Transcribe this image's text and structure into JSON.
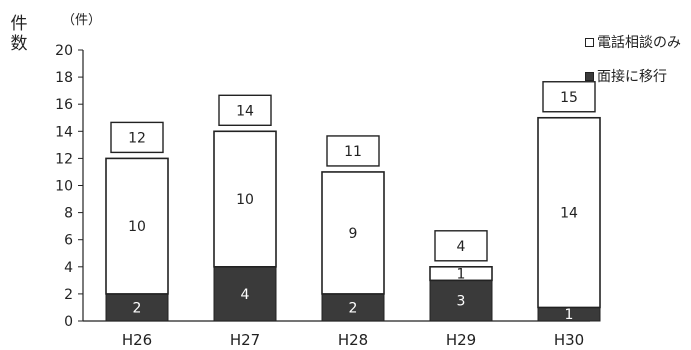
{
  "chart_data": {
    "type": "bar",
    "stacked": true,
    "categories": [
      "H26",
      "H27",
      "H28",
      "H29",
      "H30"
    ],
    "series": [
      {
        "name": "面接に移行",
        "values": [
          2,
          4,
          2,
          3,
          1
        ],
        "color": "#3a3a3a"
      },
      {
        "name": "電話相談のみ",
        "values": [
          10,
          10,
          9,
          1,
          14
        ],
        "color": "#ffffff"
      }
    ],
    "totals": [
      12,
      14,
      11,
      4,
      15
    ],
    "ylabel": "件数",
    "unit_label": "（件）",
    "ylim": [
      0,
      20
    ],
    "yticks": [
      0,
      2,
      4,
      6,
      8,
      10,
      12,
      14,
      16,
      18,
      20
    ],
    "grid": false,
    "legend_position": "top-right"
  }
}
